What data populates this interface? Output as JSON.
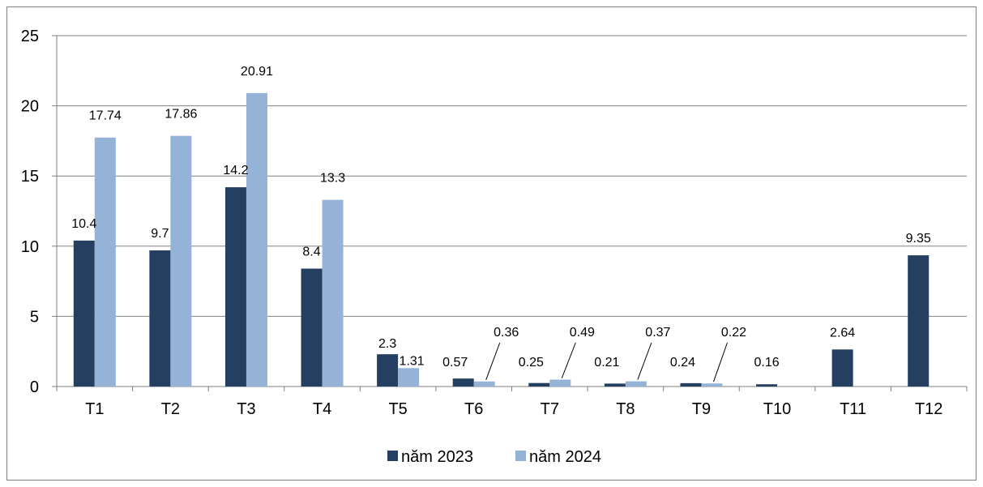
{
  "chart_data": {
    "type": "bar",
    "categories": [
      "T1",
      "T2",
      "T3",
      "T4",
      "T5",
      "T6",
      "T7",
      "T8",
      "T9",
      "T10",
      "T11",
      "T12"
    ],
    "series": [
      {
        "name": "năm 2023",
        "color": "#243F60",
        "values": [
          10.4,
          9.7,
          14.2,
          8.4,
          2.3,
          0.57,
          0.25,
          0.21,
          0.24,
          0.16,
          2.64,
          9.35
        ],
        "labels": [
          "10.4",
          "9.7",
          "14.2",
          "8.4",
          "2.3",
          "0.57",
          "0.25",
          "0.21",
          "0.24",
          "0.16",
          "2.64",
          "9.35"
        ]
      },
      {
        "name": "năm 2024",
        "color": "#95B3D7",
        "values": [
          17.74,
          17.86,
          20.91,
          13.3,
          1.31,
          0.36,
          0.49,
          0.37,
          0.22,
          null,
          null,
          null
        ],
        "labels": [
          "17.74",
          "17.86",
          "20.91",
          "13.3",
          "1.31",
          "0.36",
          "0.49",
          "0.37",
          "0.22",
          null,
          null,
          null
        ]
      }
    ],
    "yticks": [
      "0",
      "5",
      "10",
      "15",
      "20",
      "25"
    ],
    "ylim": [
      0,
      25
    ],
    "grid": true,
    "legend_position": "bottom",
    "title": "",
    "xlabel": "",
    "ylabel": ""
  }
}
